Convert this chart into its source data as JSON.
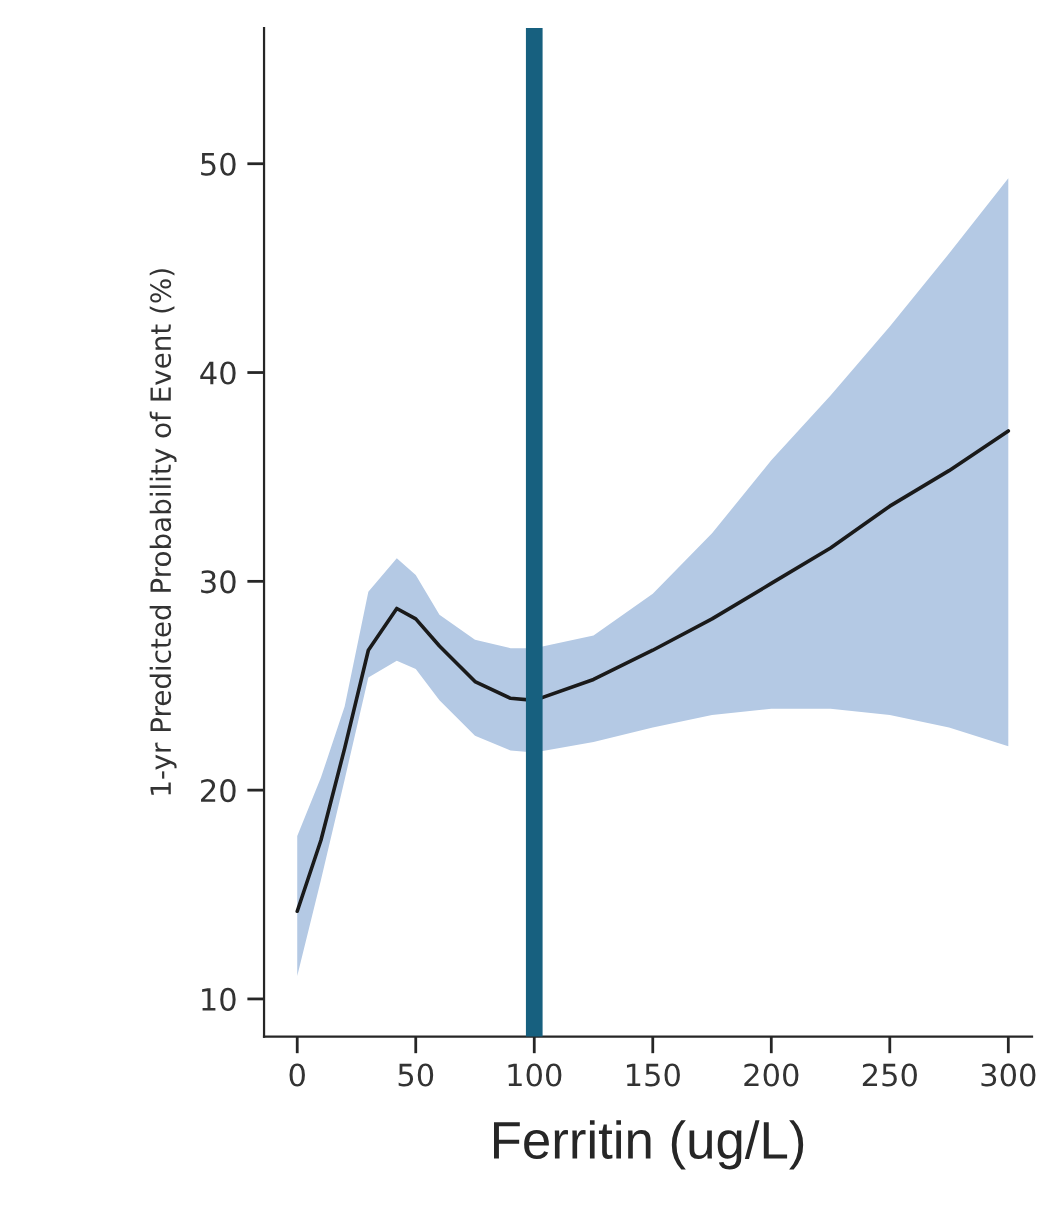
{
  "chart_data": {
    "type": "line",
    "xlabel": "Ferritin (ug/L)",
    "ylabel": "1-yr Predicted Probability of Event (%)",
    "xlim": [
      -14,
      310
    ],
    "ylim": [
      8.2,
      56.5
    ],
    "xticks": [
      0,
      50,
      100,
      150,
      200,
      250,
      300
    ],
    "yticks": [
      10,
      20,
      30,
      40,
      50
    ],
    "grid": false,
    "legend": false,
    "marker": "none",
    "line_style": "solid",
    "series": [
      {
        "color": "#1a1a1a",
        "x": [
          0,
          10,
          20,
          30,
          42,
          50,
          60,
          75,
          90,
          100,
          125,
          150,
          175,
          200,
          225,
          250,
          275,
          300
        ],
        "values": [
          14.2,
          17.6,
          22,
          26.7,
          28.7,
          28.2,
          26.9,
          25.2,
          24.4,
          24.3,
          25.3,
          26.7,
          28.2,
          29.9,
          31.6,
          33.6,
          35.3,
          37.2
        ],
        "lower": [
          11.1,
          15.7,
          20.5,
          25.4,
          26.2,
          25.8,
          24.3,
          22.6,
          21.9,
          21.8,
          22.3,
          23.0,
          23.6,
          23.9,
          23.9,
          23.6,
          23.0,
          22.1
        ],
        "upper": [
          17.8,
          20.6,
          24,
          29.5,
          31.1,
          30.3,
          28.4,
          27.2,
          26.8,
          26.8,
          27.4,
          29.4,
          32.3,
          35.8,
          38.9,
          42.2,
          45.7,
          49.3
        ]
      }
    ],
    "ref_lines": [
      {
        "axis": "x",
        "value": 100,
        "color": "#17607f"
      }
    ]
  }
}
